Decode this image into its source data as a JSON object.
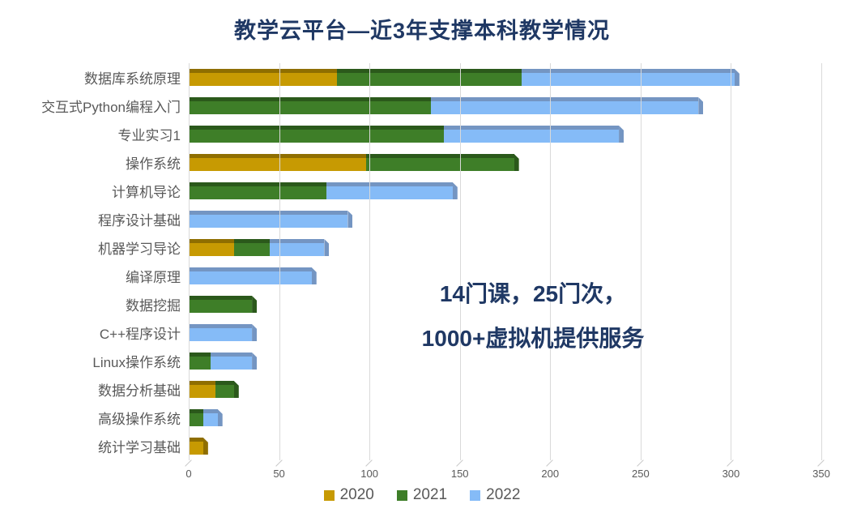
{
  "title": "教学云平台—近3年支撑本科教学情况",
  "title_color": "#1f3864",
  "annotation": {
    "line1": "14门课，25门次，",
    "line2": "1000+虚拟机提供服务",
    "color": "#1f3864"
  },
  "axis_text_color": "#595959",
  "gridline_color": "#d9d9d9",
  "chart_data": {
    "type": "bar",
    "orientation": "horizontal",
    "stacked": true,
    "style": "3d-bevel",
    "title": "教学云平台—近3年支撑本科教学情况",
    "xlabel": "",
    "ylabel": "",
    "xlim": [
      0,
      350
    ],
    "xticks": [
      0,
      50,
      100,
      150,
      200,
      250,
      300,
      350
    ],
    "grid": true,
    "legend_position": "bottom",
    "categories": [
      "数据库系统原理",
      "交互式Python编程入门",
      "专业实习1",
      "操作系统",
      "计算机导论",
      "程序设计基础",
      "机器学习导论",
      "编译原理",
      "数据挖掘",
      "C++程序设计",
      "Linux操作系统",
      "数据分析基础",
      "高级操作系统",
      "统计学习基础"
    ],
    "series": [
      {
        "name": "2020",
        "color": "#c79a02",
        "bevel_color": "#8f6e00",
        "values": [
          82,
          0,
          0,
          98,
          0,
          0,
          25,
          0,
          0,
          0,
          0,
          15,
          0,
          8
        ]
      },
      {
        "name": "2021",
        "color": "#3e7e28",
        "bevel_color": "#2b591b",
        "values": [
          102,
          134,
          141,
          82,
          76,
          0,
          20,
          0,
          35,
          0,
          12,
          10,
          8,
          0
        ]
      },
      {
        "name": "2022",
        "color": "#85bbf7",
        "bevel_color": "#7495c2",
        "values": [
          118,
          148,
          97,
          0,
          70,
          88,
          30,
          68,
          0,
          35,
          23,
          0,
          8,
          0
        ]
      }
    ],
    "totals": [
      302,
      282,
      238,
      180,
      146,
      88,
      75,
      68,
      35,
      35,
      35,
      25,
      16,
      8
    ]
  }
}
